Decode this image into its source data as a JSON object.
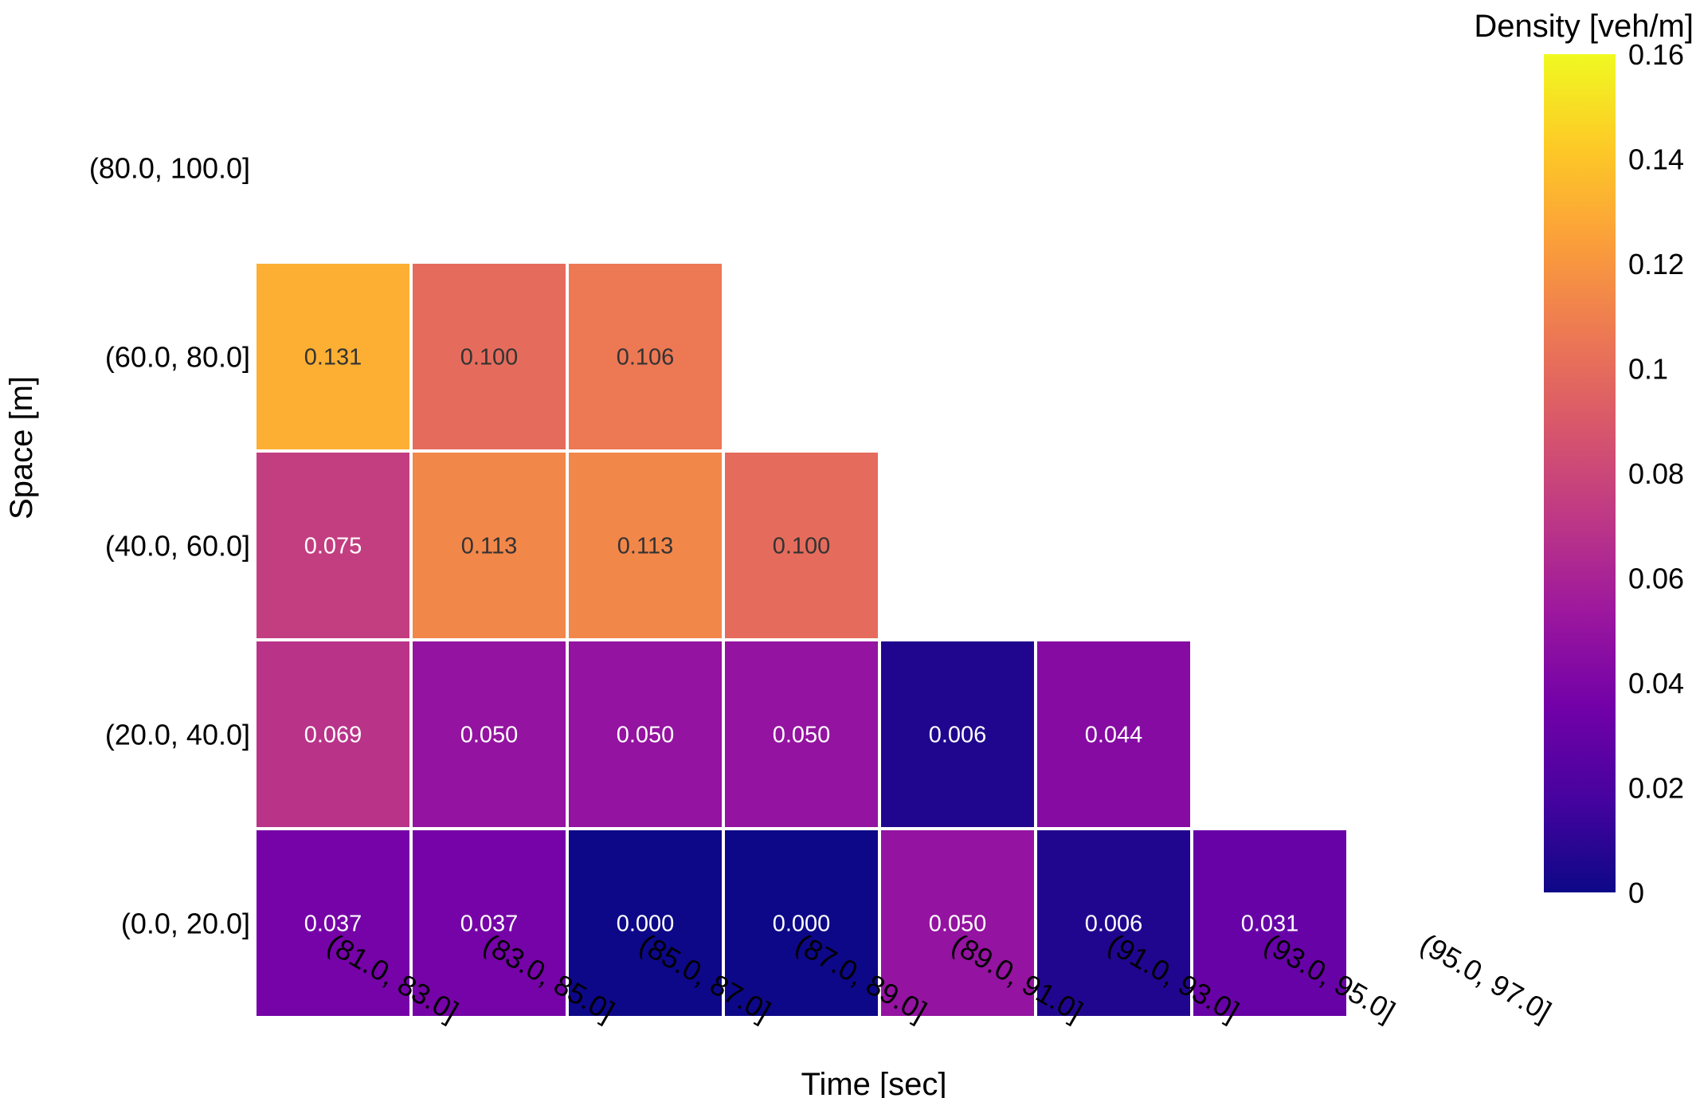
{
  "chart_data": {
    "type": "heatmap",
    "xlabel": "Time [sec]",
    "ylabel": "Space [m]",
    "x_categories": [
      "(81.0, 83.0]",
      "(83.0, 85.0]",
      "(85.0, 87.0]",
      "(87.0, 89.0]",
      "(89.0, 91.0]",
      "(91.0, 93.0]",
      "(93.0, 95.0]",
      "(95.0, 97.0]"
    ],
    "y_categories": [
      "(80.0, 100.0]",
      "(60.0, 80.0]",
      "(40.0, 60.0]",
      "(20.0, 40.0]",
      "(0.0, 20.0]"
    ],
    "values": [
      [
        null,
        null,
        null,
        null,
        null,
        null,
        null,
        null
      ],
      [
        0.131,
        0.1,
        0.106,
        null,
        null,
        null,
        null,
        null
      ],
      [
        0.075,
        0.113,
        0.113,
        0.1,
        null,
        null,
        null,
        null
      ],
      [
        0.069,
        0.05,
        0.05,
        0.05,
        0.006,
        0.044,
        null,
        null
      ],
      [
        0.037,
        0.037,
        0.0,
        0.0,
        0.05,
        0.006,
        0.031,
        null
      ]
    ],
    "value_labels": [
      [
        null,
        null,
        null,
        null,
        null,
        null,
        null,
        null
      ],
      [
        "0.131",
        "0.100",
        "0.106",
        null,
        null,
        null,
        null,
        null
      ],
      [
        "0.075",
        "0.113",
        "0.113",
        "0.100",
        null,
        null,
        null,
        null
      ],
      [
        "0.069",
        "0.050",
        "0.050",
        "0.050",
        "0.006",
        "0.044",
        null,
        null
      ],
      [
        "0.037",
        "0.037",
        "0.000",
        "0.000",
        "0.050",
        "0.006",
        "0.031",
        null
      ]
    ],
    "colorscale": "plasma",
    "colorbar": {
      "title": "Density [veh/m]",
      "range": [
        0,
        0.16
      ],
      "ticks": [
        0,
        0.02,
        0.04,
        0.06,
        0.08,
        0.1,
        0.12,
        0.14,
        0.16
      ],
      "tick_labels": [
        "0",
        "0.02",
        "0.04",
        "0.06",
        "0.08",
        "0.1",
        "0.12",
        "0.14",
        "0.16"
      ]
    },
    "grid": false
  }
}
